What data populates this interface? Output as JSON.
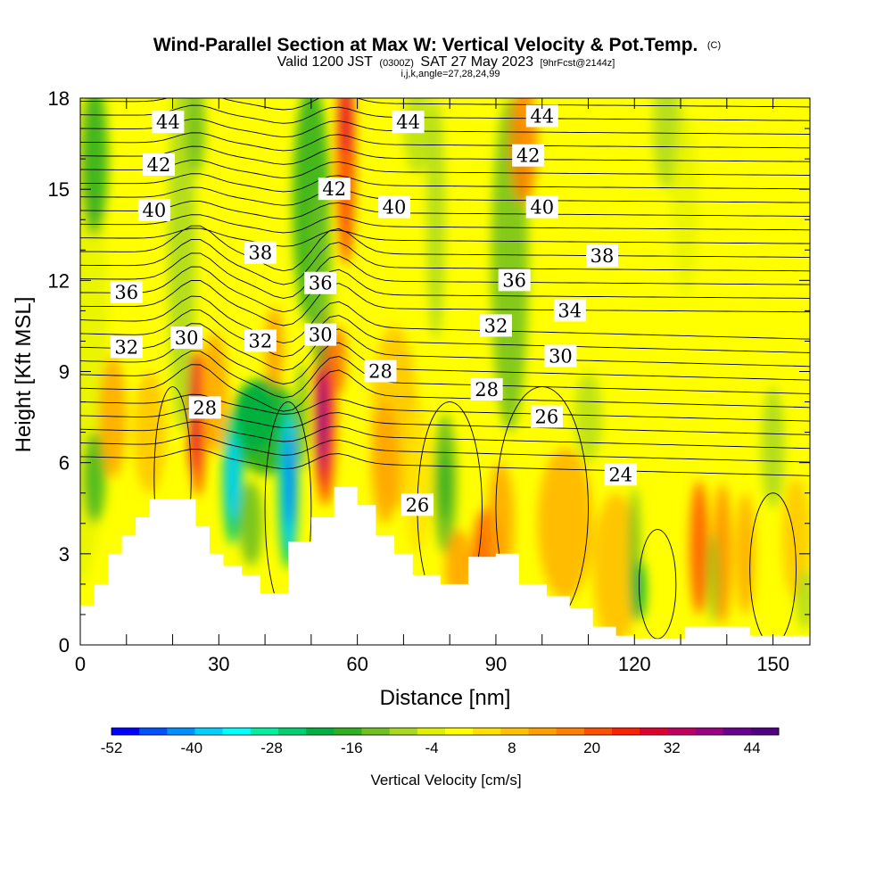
{
  "chart_data": {
    "type": "heatmap",
    "title": "Wind-Parallel Section at Max W: Vertical Velocity & Pot.Temp.",
    "title_mark": "(C)",
    "subtitle_parts": [
      "Valid 1200 JST",
      "(0300Z)",
      "SAT 27 May 2023",
      "[9hrFcst@2144z]"
    ],
    "subtitle2": "i,j,k,angle=27,28,24,99",
    "xlabel": "Distance [nm]",
    "ylabel": "Height [Kft MSL]",
    "xlim": [
      0,
      158
    ],
    "ylim": [
      0,
      18
    ],
    "xticks": [
      "0",
      "30",
      "60",
      "90",
      "120",
      "150"
    ],
    "yticks": [
      "0",
      "3",
      "6",
      "9",
      "12",
      "15",
      "18"
    ],
    "colorbar": {
      "label": "Vertical Velocity [cm/s]",
      "range": [
        -52,
        48
      ],
      "tick_labels": [
        "-52",
        "-40",
        "-28",
        "-16",
        "-4",
        "8",
        "20",
        "32",
        "44"
      ],
      "colors": [
        "#0000ff",
        "#0050ff",
        "#0090ff",
        "#00d0ff",
        "#00ffff",
        "#00f0a0",
        "#00d070",
        "#00b040",
        "#30b020",
        "#70c020",
        "#a8d820",
        "#e0f000",
        "#ffff00",
        "#ffe000",
        "#ffc000",
        "#ffa000",
        "#ff8000",
        "#ff5000",
        "#ff2000",
        "#e00030",
        "#c00060",
        "#9b0082",
        "#6a0090",
        "#500080"
      ]
    },
    "terrain_kft": [
      [
        0,
        1.3
      ],
      [
        3,
        2.0
      ],
      [
        6,
        3.0
      ],
      [
        9,
        3.6
      ],
      [
        12,
        4.2
      ],
      [
        15,
        4.8
      ],
      [
        25,
        3.9
      ],
      [
        28,
        3.0
      ],
      [
        31,
        2.6
      ],
      [
        35,
        2.3
      ],
      [
        39,
        1.7
      ],
      [
        45,
        3.4
      ],
      [
        50,
        4.2
      ],
      [
        55,
        5.2
      ],
      [
        60,
        4.6
      ],
      [
        64,
        3.6
      ],
      [
        68,
        3.0
      ],
      [
        72,
        2.3
      ],
      [
        78,
        2.0
      ],
      [
        84,
        2.9
      ],
      [
        90,
        3.0
      ],
      [
        95,
        2.0
      ],
      [
        101,
        1.6
      ],
      [
        106,
        1.2
      ],
      [
        111,
        0.6
      ],
      [
        116,
        0.3
      ],
      [
        120,
        0.2
      ],
      [
        128,
        0.2
      ],
      [
        131,
        0.6
      ],
      [
        140,
        0.6
      ],
      [
        145,
        0.3
      ],
      [
        158,
        0.3
      ]
    ],
    "theta_labels": [
      {
        "text": "44",
        "x": 19,
        "y": 17.2
      },
      {
        "text": "44",
        "x": 71,
        "y": 17.2
      },
      {
        "text": "44",
        "x": 100,
        "y": 17.4
      },
      {
        "text": "42",
        "x": 17,
        "y": 15.8
      },
      {
        "text": "42",
        "x": 55,
        "y": 15.0
      },
      {
        "text": "42",
        "x": 97,
        "y": 16.1
      },
      {
        "text": "40",
        "x": 16,
        "y": 14.3
      },
      {
        "text": "40",
        "x": 68,
        "y": 14.4
      },
      {
        "text": "40",
        "x": 100,
        "y": 14.4
      },
      {
        "text": "38",
        "x": 39,
        "y": 12.9
      },
      {
        "text": "38",
        "x": 113,
        "y": 12.8
      },
      {
        "text": "36",
        "x": 10,
        "y": 11.6
      },
      {
        "text": "36",
        "x": 52,
        "y": 11.9
      },
      {
        "text": "36",
        "x": 94,
        "y": 12.0
      },
      {
        "text": "34",
        "x": 106,
        "y": 11.0
      },
      {
        "text": "32",
        "x": 10,
        "y": 9.8
      },
      {
        "text": "32",
        "x": 39,
        "y": 10.0
      },
      {
        "text": "32",
        "x": 90,
        "y": 10.5
      },
      {
        "text": "30",
        "x": 23,
        "y": 10.1
      },
      {
        "text": "30",
        "x": 52,
        "y": 10.2
      },
      {
        "text": "30",
        "x": 104,
        "y": 9.5
      },
      {
        "text": "28",
        "x": 27,
        "y": 7.8
      },
      {
        "text": "28",
        "x": 65,
        "y": 9.0
      },
      {
        "text": "28",
        "x": 88,
        "y": 8.4
      },
      {
        "text": "26",
        "x": 73,
        "y": 4.6
      },
      {
        "text": "26",
        "x": 101,
        "y": 7.5
      },
      {
        "text": "24",
        "x": 117,
        "y": 5.6
      }
    ]
  }
}
